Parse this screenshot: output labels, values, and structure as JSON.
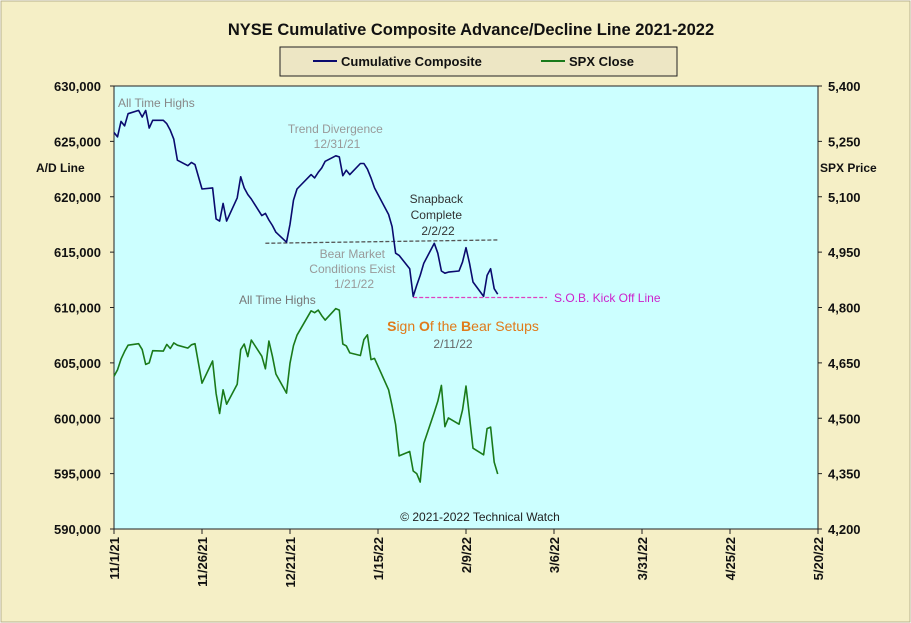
{
  "chart_data": {
    "type": "line",
    "title": "NYSE Cumulative  Composite Advance/Decline Line 2021-2022",
    "left_axis": {
      "label": "A/D Line",
      "ylim": [
        590000,
        630000
      ],
      "ticks": [
        "630,000",
        "625,000",
        "620,000",
        "615,000",
        "610,000",
        "605,000",
        "600,000",
        "595,000",
        "590,000"
      ]
    },
    "right_axis": {
      "label": "SPX Price",
      "ylim": [
        4200,
        5400
      ],
      "ticks": [
        "5,400",
        "5,250",
        "5,100",
        "4,950",
        "4,800",
        "4,650",
        "4,500",
        "4,350",
        "4,200"
      ]
    },
    "x_ticks": [
      "11/1/21",
      "11/26/21",
      "12/21/21",
      "1/15/22",
      "2/9/22",
      "3/6/22",
      "3/31/22",
      "4/25/22",
      "5/20/22"
    ],
    "xlim": [
      "2021-11-01",
      "2022-05-20"
    ],
    "legend": {
      "placement": "top-center"
    },
    "series": [
      {
        "name": "Cumulative Composite",
        "axis": "left",
        "color": "#0a0a6e",
        "points": [
          [
            "2021-11-01",
            625800
          ],
          [
            "2021-11-02",
            625400
          ],
          [
            "2021-11-03",
            626800
          ],
          [
            "2021-11-04",
            626400
          ],
          [
            "2021-11-05",
            627500
          ],
          [
            "2021-11-08",
            627800
          ],
          [
            "2021-11-09",
            627200
          ],
          [
            "2021-11-10",
            627800
          ],
          [
            "2021-11-11",
            626200
          ],
          [
            "2021-11-12",
            626900
          ],
          [
            "2021-11-15",
            626900
          ],
          [
            "2021-11-16",
            626600
          ],
          [
            "2021-11-17",
            626000
          ],
          [
            "2021-11-18",
            625200
          ],
          [
            "2021-11-19",
            623300
          ],
          [
            "2021-11-22",
            622800
          ],
          [
            "2021-11-23",
            623100
          ],
          [
            "2021-11-24",
            622900
          ],
          [
            "2021-11-26",
            620700
          ],
          [
            "2021-11-29",
            620800
          ],
          [
            "2021-11-30",
            618000
          ],
          [
            "2021-12-01",
            617800
          ],
          [
            "2021-12-02",
            619400
          ],
          [
            "2021-12-03",
            617800
          ],
          [
            "2021-12-06",
            619900
          ],
          [
            "2021-12-07",
            621800
          ],
          [
            "2021-12-08",
            620800
          ],
          [
            "2021-12-09",
            620200
          ],
          [
            "2021-12-10",
            619800
          ],
          [
            "2021-12-13",
            618300
          ],
          [
            "2021-12-14",
            618500
          ],
          [
            "2021-12-15",
            617900
          ],
          [
            "2021-12-16",
            617400
          ],
          [
            "2021-12-17",
            616800
          ],
          [
            "2021-12-20",
            615900
          ],
          [
            "2021-12-21",
            617500
          ],
          [
            "2021-12-22",
            619700
          ],
          [
            "2021-12-23",
            620700
          ],
          [
            "2021-12-27",
            622000
          ],
          [
            "2021-12-28",
            621700
          ],
          [
            "2021-12-29",
            622200
          ],
          [
            "2021-12-30",
            622600
          ],
          [
            "2021-12-31",
            623200
          ],
          [
            "2022-01-03",
            623700
          ],
          [
            "2022-01-04",
            623600
          ],
          [
            "2022-01-05",
            621900
          ],
          [
            "2022-01-06",
            622400
          ],
          [
            "2022-01-07",
            622000
          ],
          [
            "2022-01-10",
            623000
          ],
          [
            "2022-01-11",
            623000
          ],
          [
            "2022-01-12",
            622500
          ],
          [
            "2022-01-13",
            621700
          ],
          [
            "2022-01-14",
            620800
          ],
          [
            "2022-01-18",
            618400
          ],
          [
            "2022-01-19",
            617300
          ],
          [
            "2022-01-20",
            614900
          ],
          [
            "2022-01-21",
            614700
          ],
          [
            "2022-01-24",
            613500
          ],
          [
            "2022-01-25",
            611000
          ],
          [
            "2022-01-26",
            612000
          ],
          [
            "2022-01-27",
            612900
          ],
          [
            "2022-01-28",
            614000
          ],
          [
            "2022-01-31",
            615800
          ],
          [
            "2022-02-01",
            614900
          ],
          [
            "2022-02-02",
            613300
          ],
          [
            "2022-02-03",
            613100
          ],
          [
            "2022-02-04",
            613200
          ],
          [
            "2022-02-07",
            613300
          ],
          [
            "2022-02-08",
            614100
          ],
          [
            "2022-02-09",
            615400
          ],
          [
            "2022-02-10",
            614000
          ],
          [
            "2022-02-11",
            612300
          ],
          [
            "2022-02-14",
            611000
          ],
          [
            "2022-02-15",
            612900
          ],
          [
            "2022-02-16",
            613500
          ],
          [
            "2022-02-17",
            611700
          ],
          [
            "2022-02-18",
            611200
          ]
        ]
      },
      {
        "name": "SPX Close",
        "axis": "right",
        "color": "#1a7a1a",
        "points": [
          [
            "2021-11-01",
            4614
          ],
          [
            "2021-11-02",
            4631
          ],
          [
            "2021-11-03",
            4660
          ],
          [
            "2021-11-04",
            4681
          ],
          [
            "2021-11-05",
            4698
          ],
          [
            "2021-11-08",
            4702
          ],
          [
            "2021-11-09",
            4686
          ],
          [
            "2021-11-10",
            4646
          ],
          [
            "2021-11-11",
            4650
          ],
          [
            "2021-11-12",
            4683
          ],
          [
            "2021-11-15",
            4682
          ],
          [
            "2021-11-16",
            4700
          ],
          [
            "2021-11-17",
            4689
          ],
          [
            "2021-11-18",
            4704
          ],
          [
            "2021-11-19",
            4698
          ],
          [
            "2021-11-22",
            4690
          ],
          [
            "2021-11-23",
            4699
          ],
          [
            "2021-11-24",
            4702
          ],
          [
            "2021-11-26",
            4595
          ],
          [
            "2021-11-29",
            4655
          ],
          [
            "2021-11-30",
            4567
          ],
          [
            "2021-12-01",
            4513
          ],
          [
            "2021-12-02",
            4577
          ],
          [
            "2021-12-03",
            4538
          ],
          [
            "2021-12-06",
            4592
          ],
          [
            "2021-12-07",
            4686
          ],
          [
            "2021-12-08",
            4701
          ],
          [
            "2021-12-09",
            4667
          ],
          [
            "2021-12-10",
            4712
          ],
          [
            "2021-12-13",
            4668
          ],
          [
            "2021-12-14",
            4634
          ],
          [
            "2021-12-15",
            4709
          ],
          [
            "2021-12-16",
            4668
          ],
          [
            "2021-12-17",
            4620
          ],
          [
            "2021-12-20",
            4568
          ],
          [
            "2021-12-21",
            4649
          ],
          [
            "2021-12-22",
            4697
          ],
          [
            "2021-12-23",
            4725
          ],
          [
            "2021-12-27",
            4791
          ],
          [
            "2021-12-28",
            4786
          ],
          [
            "2021-12-29",
            4793
          ],
          [
            "2021-12-30",
            4778
          ],
          [
            "2021-12-31",
            4766
          ],
          [
            "2022-01-03",
            4797
          ],
          [
            "2022-01-04",
            4793
          ],
          [
            "2022-01-05",
            4701
          ],
          [
            "2022-01-06",
            4696
          ],
          [
            "2022-01-07",
            4677
          ],
          [
            "2022-01-10",
            4670
          ],
          [
            "2022-01-11",
            4713
          ],
          [
            "2022-01-12",
            4726
          ],
          [
            "2022-01-13",
            4659
          ],
          [
            "2022-01-14",
            4662
          ],
          [
            "2022-01-18",
            4577
          ],
          [
            "2022-01-19",
            4533
          ],
          [
            "2022-01-20",
            4483
          ],
          [
            "2022-01-21",
            4398
          ],
          [
            "2022-01-24",
            4410
          ],
          [
            "2022-01-25",
            4357
          ],
          [
            "2022-01-26",
            4350
          ],
          [
            "2022-01-27",
            4327
          ],
          [
            "2022-01-28",
            4432
          ],
          [
            "2022-01-31",
            4516
          ],
          [
            "2022-02-01",
            4546
          ],
          [
            "2022-02-02",
            4589
          ],
          [
            "2022-02-03",
            4477
          ],
          [
            "2022-02-04",
            4501
          ],
          [
            "2022-02-07",
            4484
          ],
          [
            "2022-02-08",
            4522
          ],
          [
            "2022-02-09",
            4587
          ],
          [
            "2022-02-10",
            4504
          ],
          [
            "2022-02-11",
            4419
          ],
          [
            "2022-02-14",
            4401
          ],
          [
            "2022-02-15",
            4472
          ],
          [
            "2022-02-16",
            4476
          ],
          [
            "2022-02-17",
            4381
          ],
          [
            "2022-02-18",
            4349
          ]
        ]
      }
    ],
    "reference_lines": [
      {
        "kind": "divergence",
        "color": "#555555",
        "start": [
          "2021-12-14",
          615800
        ],
        "end": [
          "2022-02-18",
          616100
        ]
      },
      {
        "kind": "sob",
        "color": "#e040c0",
        "start": [
          "2022-01-25",
          610900
        ],
        "end": [
          "2022-03-04",
          610900
        ]
      }
    ],
    "annotations": {
      "ath_top": {
        "lines": [
          "All Time Highs"
        ],
        "color": "#888888"
      },
      "trend": {
        "lines": [
          "Trend Divergence",
          "12/31/21"
        ],
        "color": "#999999"
      },
      "snapback": {
        "lines": [
          "Snapback",
          "Complete",
          "2/2/22"
        ],
        "color": "#333333"
      },
      "bear_market": {
        "lines": [
          "Bear Market",
          "Conditions  Exist",
          "1/21/22"
        ],
        "color": "#999999"
      },
      "sob_line": {
        "lines": [
          "S.O.B. Kick Off Line"
        ],
        "color": "#cc22cc"
      },
      "ath_mid": {
        "lines": [
          "All Time  Highs"
        ],
        "color": "#777777"
      },
      "sob_setups_title": {
        "segments": [
          {
            "text": "S",
            "bold": true
          },
          {
            "text": "ign ",
            "bold": false
          },
          {
            "text": "O",
            "bold": true
          },
          {
            "text": "f the ",
            "bold": false
          },
          {
            "text": "B",
            "bold": true
          },
          {
            "text": "ear Setups",
            "bold": false
          }
        ],
        "color": "#e07a1a"
      },
      "sob_setups_date": {
        "lines": [
          "2/11/22"
        ],
        "color": "#666666"
      }
    },
    "copyright": "© 2021-2022  Technical Watch"
  },
  "colors": {
    "frame_bg": "#f5efc6",
    "plot_bg": "#ccffff",
    "legend_bg": "#ede6c4"
  }
}
